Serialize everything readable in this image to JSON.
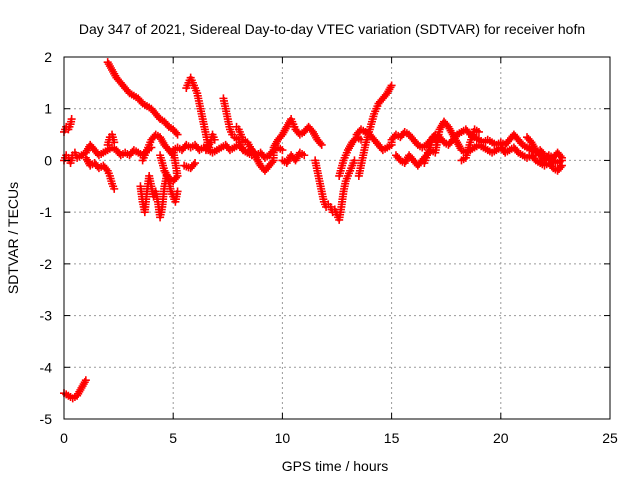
{
  "chart_data": {
    "type": "scatter",
    "title": "Day 347 of 2021, Sidereal Day-to-day VTEC variation (SDTVAR) for receiver hofn",
    "xlabel": "GPS time / hours",
    "ylabel": "SDTVAR / TECUs",
    "xlim": [
      0,
      25
    ],
    "ylim": [
      -5,
      2
    ],
    "xticks": [
      0,
      5,
      10,
      15,
      20,
      25
    ],
    "yticks": [
      -5,
      -4,
      -3,
      -2,
      -1,
      0,
      1,
      2
    ],
    "x_tick_labels": [
      "0",
      "5",
      "10",
      "15",
      "20",
      "25"
    ],
    "y_tick_labels": [
      "-5",
      "-4",
      "-3",
      "-2",
      "-1",
      "0",
      "1",
      "2"
    ],
    "grid": true,
    "marker": "+",
    "marker_color": "#ff0000",
    "series": [
      {
        "name": "SDTVAR",
        "points": [
          [
            0.0,
            0.0
          ],
          [
            0.1,
            0.1
          ],
          [
            0.2,
            0.05
          ],
          [
            0.3,
            -0.05
          ],
          [
            0.4,
            0.1
          ],
          [
            0.5,
            0.15
          ],
          [
            0.6,
            0.05
          ],
          [
            0.8,
            0.1
          ],
          [
            1.0,
            0.15
          ],
          [
            1.2,
            0.3
          ],
          [
            1.4,
            0.2
          ],
          [
            1.6,
            0.1
          ],
          [
            1.8,
            0.15
          ],
          [
            2.0,
            0.2
          ],
          [
            2.2,
            0.25
          ],
          [
            2.4,
            0.2
          ],
          [
            2.6,
            0.1
          ],
          [
            2.8,
            0.15
          ],
          [
            3.0,
            0.1
          ],
          [
            3.2,
            0.2
          ],
          [
            3.4,
            0.15
          ],
          [
            3.6,
            0.1
          ],
          [
            3.8,
            0.2
          ],
          [
            4.0,
            0.25
          ],
          [
            0.0,
            0.55
          ],
          [
            0.1,
            0.65
          ],
          [
            0.2,
            0.6
          ],
          [
            0.3,
            0.7
          ],
          [
            0.35,
            0.8
          ],
          [
            0.0,
            -4.5
          ],
          [
            0.2,
            -4.55
          ],
          [
            0.4,
            -4.6
          ],
          [
            0.6,
            -4.55
          ],
          [
            0.8,
            -4.4
          ],
          [
            1.0,
            -4.25
          ],
          [
            1.0,
            0.05
          ],
          [
            1.2,
            -0.1
          ],
          [
            1.4,
            -0.05
          ],
          [
            1.6,
            -0.15
          ],
          [
            1.8,
            -0.1
          ],
          [
            2.0,
            -0.2
          ],
          [
            2.1,
            -0.3
          ],
          [
            2.2,
            -0.45
          ],
          [
            2.3,
            -0.55
          ],
          [
            2.0,
            1.9
          ],
          [
            2.2,
            1.75
          ],
          [
            2.4,
            1.6
          ],
          [
            2.6,
            1.5
          ],
          [
            2.8,
            1.4
          ],
          [
            3.0,
            1.3
          ],
          [
            3.2,
            1.25
          ],
          [
            3.4,
            1.2
          ],
          [
            3.6,
            1.1
          ],
          [
            3.8,
            1.05
          ],
          [
            4.0,
            1.0
          ],
          [
            4.2,
            0.9
          ],
          [
            4.4,
            0.8
          ],
          [
            4.6,
            0.75
          ],
          [
            4.8,
            0.65
          ],
          [
            5.0,
            0.6
          ],
          [
            5.2,
            0.5
          ],
          [
            2.0,
            0.3
          ],
          [
            2.1,
            0.45
          ],
          [
            2.2,
            0.5
          ],
          [
            2.3,
            0.35
          ],
          [
            3.5,
            -0.5
          ],
          [
            3.6,
            -0.8
          ],
          [
            3.7,
            -1.0
          ],
          [
            3.8,
            -0.6
          ],
          [
            3.9,
            -0.3
          ],
          [
            4.0,
            -0.5
          ],
          [
            4.1,
            -0.7
          ],
          [
            4.2,
            -0.6
          ],
          [
            4.3,
            -0.8
          ],
          [
            4.4,
            -1.1
          ],
          [
            4.5,
            -0.9
          ],
          [
            4.6,
            -0.5
          ],
          [
            4.7,
            -0.3
          ],
          [
            4.8,
            -0.4
          ],
          [
            4.9,
            -0.6
          ],
          [
            5.0,
            -0.7
          ],
          [
            5.1,
            -0.8
          ],
          [
            5.2,
            -0.6
          ],
          [
            3.6,
            0.0
          ],
          [
            3.8,
            0.2
          ],
          [
            4.0,
            0.4
          ],
          [
            4.2,
            0.5
          ],
          [
            4.4,
            0.45
          ],
          [
            4.6,
            0.3
          ],
          [
            4.8,
            0.2
          ],
          [
            5.0,
            0.1
          ],
          [
            4.4,
            0.1
          ],
          [
            4.6,
            -0.2
          ],
          [
            4.8,
            -0.35
          ],
          [
            5.0,
            -0.4
          ],
          [
            5.2,
            -0.3
          ],
          [
            5.0,
            0.2
          ],
          [
            5.2,
            0.25
          ],
          [
            5.4,
            0.2
          ],
          [
            5.6,
            0.3
          ],
          [
            5.8,
            0.25
          ],
          [
            6.0,
            0.3
          ],
          [
            6.2,
            0.2
          ],
          [
            6.4,
            0.25
          ],
          [
            6.6,
            0.2
          ],
          [
            6.8,
            0.15
          ],
          [
            7.0,
            0.2
          ],
          [
            7.2,
            0.25
          ],
          [
            7.4,
            0.3
          ],
          [
            7.6,
            0.2
          ],
          [
            7.8,
            0.25
          ],
          [
            8.0,
            0.3
          ],
          [
            8.2,
            0.2
          ],
          [
            8.4,
            0.15
          ],
          [
            8.6,
            0.2
          ],
          [
            8.8,
            0.1
          ],
          [
            9.0,
            0.15
          ],
          [
            9.2,
            0.05
          ],
          [
            9.4,
            0.1
          ],
          [
            9.6,
            0.2
          ],
          [
            9.8,
            0.25
          ],
          [
            10.0,
            0.2
          ],
          [
            5.6,
            1.4
          ],
          [
            5.7,
            1.5
          ],
          [
            5.8,
            1.6
          ],
          [
            5.9,
            1.5
          ],
          [
            6.0,
            1.4
          ],
          [
            6.1,
            1.3
          ],
          [
            6.2,
            1.1
          ],
          [
            6.3,
            0.9
          ],
          [
            6.4,
            0.7
          ],
          [
            6.5,
            0.5
          ],
          [
            6.6,
            0.3
          ],
          [
            6.7,
            0.2
          ],
          [
            5.5,
            -0.1
          ],
          [
            5.8,
            -0.15
          ],
          [
            6.0,
            -0.05
          ],
          [
            6.5,
            0.2
          ],
          [
            6.7,
            0.35
          ],
          [
            6.8,
            0.5
          ],
          [
            6.9,
            0.4
          ],
          [
            7.3,
            1.2
          ],
          [
            7.4,
            1.0
          ],
          [
            7.5,
            0.8
          ],
          [
            7.6,
            0.6
          ],
          [
            7.7,
            0.5
          ],
          [
            7.8,
            0.45
          ],
          [
            8.0,
            0.4
          ],
          [
            8.2,
            0.2
          ],
          [
            8.4,
            0.15
          ],
          [
            8.6,
            0.1
          ],
          [
            7.9,
            0.65
          ],
          [
            8.0,
            0.6
          ],
          [
            8.1,
            0.5
          ],
          [
            8.2,
            0.4
          ],
          [
            8.4,
            0.35
          ],
          [
            8.8,
            0.05
          ],
          [
            9.0,
            -0.1
          ],
          [
            9.2,
            -0.2
          ],
          [
            9.4,
            -0.1
          ],
          [
            9.6,
            0.0
          ],
          [
            9.6,
            0.25
          ],
          [
            9.8,
            0.4
          ],
          [
            10.0,
            0.5
          ],
          [
            10.2,
            0.65
          ],
          [
            10.4,
            0.8
          ],
          [
            10.6,
            0.6
          ],
          [
            10.8,
            0.5
          ],
          [
            11.0,
            0.55
          ],
          [
            11.2,
            0.65
          ],
          [
            11.4,
            0.55
          ],
          [
            11.6,
            0.4
          ],
          [
            11.8,
            0.3
          ],
          [
            10.0,
            0.0
          ],
          [
            10.2,
            -0.05
          ],
          [
            10.4,
            0.1
          ],
          [
            10.6,
            0.0
          ],
          [
            10.8,
            0.15
          ],
          [
            11.0,
            0.1
          ],
          [
            11.5,
            0.0
          ],
          [
            11.6,
            -0.2
          ],
          [
            11.7,
            -0.4
          ],
          [
            11.8,
            -0.6
          ],
          [
            11.9,
            -0.8
          ],
          [
            12.0,
            -0.9
          ],
          [
            12.1,
            -0.85
          ],
          [
            12.2,
            -0.9
          ],
          [
            12.3,
            -1.0
          ],
          [
            12.4,
            -0.95
          ],
          [
            12.5,
            -1.05
          ],
          [
            12.6,
            -1.15
          ],
          [
            12.7,
            -0.9
          ],
          [
            12.8,
            -0.6
          ],
          [
            12.9,
            -0.4
          ],
          [
            13.0,
            -0.3
          ],
          [
            13.1,
            -0.2
          ],
          [
            13.2,
            -0.1
          ],
          [
            13.3,
            0.0
          ],
          [
            12.6,
            -0.3
          ],
          [
            12.8,
            0.0
          ],
          [
            13.0,
            0.2
          ],
          [
            13.2,
            0.35
          ],
          [
            13.4,
            0.45
          ],
          [
            13.6,
            0.4
          ],
          [
            13.5,
            -0.3
          ],
          [
            13.6,
            -0.1
          ],
          [
            13.8,
            0.3
          ],
          [
            14.0,
            0.6
          ],
          [
            14.2,
            0.9
          ],
          [
            14.4,
            1.1
          ],
          [
            14.6,
            1.2
          ],
          [
            14.8,
            1.3
          ],
          [
            15.0,
            1.45
          ],
          [
            13.4,
            0.5
          ],
          [
            13.6,
            0.6
          ],
          [
            13.8,
            0.55
          ],
          [
            14.0,
            0.5
          ],
          [
            14.2,
            0.4
          ],
          [
            14.4,
            0.3
          ],
          [
            14.6,
            0.2
          ],
          [
            14.8,
            0.25
          ],
          [
            15.0,
            0.3
          ],
          [
            15.0,
            0.4
          ],
          [
            15.2,
            0.5
          ],
          [
            15.4,
            0.45
          ],
          [
            15.6,
            0.55
          ],
          [
            15.8,
            0.5
          ],
          [
            16.0,
            0.4
          ],
          [
            16.2,
            0.3
          ],
          [
            16.4,
            0.25
          ],
          [
            16.6,
            0.3
          ],
          [
            16.8,
            0.4
          ],
          [
            17.0,
            0.5
          ],
          [
            17.2,
            0.45
          ],
          [
            17.4,
            0.35
          ],
          [
            17.6,
            0.3
          ],
          [
            17.8,
            0.4
          ],
          [
            18.0,
            0.5
          ],
          [
            18.2,
            0.55
          ],
          [
            18.4,
            0.6
          ],
          [
            18.6,
            0.5
          ],
          [
            18.8,
            0.45
          ],
          [
            19.0,
            0.4
          ],
          [
            19.2,
            0.35
          ],
          [
            19.4,
            0.4
          ],
          [
            19.6,
            0.35
          ],
          [
            19.8,
            0.3
          ],
          [
            20.0,
            0.35
          ],
          [
            20.2,
            0.3
          ],
          [
            20.4,
            0.4
          ],
          [
            20.6,
            0.5
          ],
          [
            20.8,
            0.4
          ],
          [
            21.0,
            0.3
          ],
          [
            21.2,
            0.25
          ],
          [
            21.4,
            0.2
          ],
          [
            21.6,
            0.15
          ],
          [
            21.8,
            0.2
          ],
          [
            22.0,
            0.1
          ],
          [
            22.2,
            0.05
          ],
          [
            22.4,
            0.0
          ],
          [
            22.6,
            -0.05
          ],
          [
            22.8,
            0.0
          ],
          [
            15.2,
            0.1
          ],
          [
            15.4,
            0.0
          ],
          [
            15.6,
            -0.05
          ],
          [
            15.8,
            0.1
          ],
          [
            16.0,
            0.0
          ],
          [
            16.2,
            -0.1
          ],
          [
            16.4,
            0.0
          ],
          [
            16.6,
            0.1
          ],
          [
            16.8,
            0.2
          ],
          [
            17.0,
            0.15
          ],
          [
            17.2,
            0.6
          ],
          [
            17.4,
            0.75
          ],
          [
            17.6,
            0.65
          ],
          [
            17.8,
            0.5
          ],
          [
            18.0,
            0.35
          ],
          [
            18.2,
            0.2
          ],
          [
            18.4,
            0.15
          ],
          [
            18.6,
            0.2
          ],
          [
            18.8,
            0.25
          ],
          [
            19.0,
            0.3
          ],
          [
            19.2,
            0.25
          ],
          [
            19.4,
            0.2
          ],
          [
            19.6,
            0.15
          ],
          [
            19.8,
            0.2
          ],
          [
            20.0,
            0.25
          ],
          [
            20.2,
            0.15
          ],
          [
            20.4,
            0.2
          ],
          [
            20.6,
            0.25
          ],
          [
            20.8,
            0.15
          ],
          [
            21.0,
            0.1
          ],
          [
            21.2,
            0.05
          ],
          [
            21.4,
            0.1
          ],
          [
            21.6,
            0.0
          ],
          [
            21.8,
            -0.05
          ],
          [
            22.0,
            -0.1
          ],
          [
            22.2,
            -0.05
          ],
          [
            22.4,
            -0.15
          ],
          [
            22.6,
            -0.2
          ],
          [
            22.8,
            -0.1
          ],
          [
            16.5,
            -0.05
          ],
          [
            16.7,
            0.2
          ],
          [
            16.9,
            0.45
          ],
          [
            17.1,
            0.35
          ],
          [
            18.2,
            0.0
          ],
          [
            18.4,
            0.05
          ],
          [
            18.6,
            0.35
          ],
          [
            18.8,
            0.6
          ],
          [
            19.0,
            0.55
          ],
          [
            21.2,
            0.45
          ],
          [
            21.4,
            0.35
          ],
          [
            21.6,
            0.2
          ],
          [
            21.8,
            0.1
          ],
          [
            22.0,
            0.0
          ],
          [
            22.2,
            0.1
          ],
          [
            22.4,
            0.05
          ],
          [
            22.6,
            0.15
          ],
          [
            22.8,
            0.05
          ]
        ]
      }
    ]
  }
}
